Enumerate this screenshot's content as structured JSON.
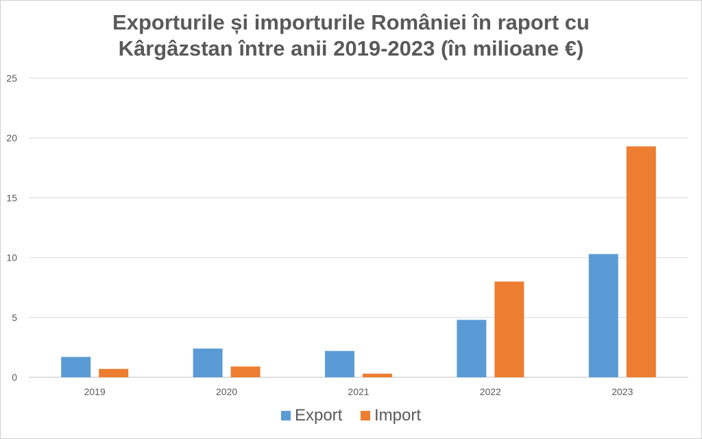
{
  "chart_data": {
    "type": "bar",
    "title_lines": [
      "Exporturile și importurile României în raport cu",
      "Kârgâzstan între anii 2019-2023 (în milioane €)"
    ],
    "categories": [
      "2019",
      "2020",
      "2021",
      "2022",
      "2023"
    ],
    "series": [
      {
        "name": "Export",
        "color": "#5b9bd5",
        "values": [
          1.7,
          2.4,
          2.2,
          4.8,
          10.3
        ]
      },
      {
        "name": "Import",
        "color": "#ed7d31",
        "values": [
          0.7,
          0.9,
          0.3,
          8.0,
          19.3
        ]
      }
    ],
    "ylim": [
      0,
      25
    ],
    "yticks": [
      "0",
      "5",
      "10",
      "15",
      "20",
      "25"
    ],
    "grid": true,
    "legend_position": "bottom"
  }
}
